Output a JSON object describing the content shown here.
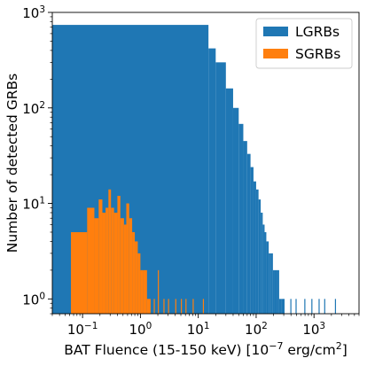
{
  "chart_data": {
    "type": "histogram",
    "title": "",
    "xlabel": {
      "prefix": "BAT Fluence (15-150 keV) [10",
      "prefix_sup": "−7",
      "middle": " erg/cm",
      "middle_sup": "2",
      "suffix": "]"
    },
    "ylabel": "Number of detected GRBs",
    "x_scale": "log",
    "y_scale": "log",
    "xlim": [
      0.03,
      6000
    ],
    "ylim": [
      0.7,
      1000
    ],
    "x_ticks": [
      {
        "value": 0.1,
        "base": "10",
        "exp": "−1"
      },
      {
        "value": 1,
        "base": "10",
        "exp": "0"
      },
      {
        "value": 10,
        "base": "10",
        "exp": "1"
      },
      {
        "value": 100,
        "base": "10",
        "exp": "2"
      },
      {
        "value": 1000,
        "base": "10",
        "exp": "3"
      }
    ],
    "y_ticks": [
      {
        "value": 1,
        "base": "10",
        "exp": "0"
      },
      {
        "value": 10,
        "base": "10",
        "exp": "1"
      },
      {
        "value": 100,
        "base": "10",
        "exp": "2"
      },
      {
        "value": 1000,
        "base": "10",
        "exp": "3"
      }
    ],
    "grid": false,
    "legend_position": "top-right",
    "series": [
      {
        "name": "LGRBs",
        "color": "#1f77b4",
        "bins": [
          [
            0.03,
            15,
            740
          ],
          [
            15,
            20,
            420
          ],
          [
            20,
            30,
            300
          ],
          [
            30,
            40,
            160
          ],
          [
            40,
            50,
            100
          ],
          [
            50,
            60,
            68
          ],
          [
            60,
            70,
            45
          ],
          [
            70,
            80,
            33
          ],
          [
            80,
            90,
            24
          ],
          [
            90,
            100,
            17
          ],
          [
            100,
            110,
            14
          ],
          [
            110,
            120,
            11
          ],
          [
            120,
            130,
            8
          ],
          [
            130,
            140,
            6
          ],
          [
            140,
            150,
            5
          ],
          [
            150,
            165,
            4
          ],
          [
            165,
            180,
            3
          ],
          [
            180,
            195,
            3
          ],
          [
            195,
            210,
            2
          ],
          [
            210,
            230,
            2
          ],
          [
            230,
            250,
            2
          ],
          [
            250,
            270,
            1
          ],
          [
            270,
            310,
            1
          ],
          [
            390,
            400,
            1
          ],
          [
            480,
            490,
            1
          ],
          [
            680,
            700,
            1
          ],
          [
            900,
            920,
            1
          ],
          [
            1200,
            1220,
            1
          ],
          [
            1500,
            1520,
            1
          ],
          [
            2300,
            2330,
            1
          ]
        ]
      },
      {
        "name": "SGRBs",
        "color": "#ff7f0e",
        "bins": [
          [
            0.063,
            0.12,
            5
          ],
          [
            0.12,
            0.16,
            9
          ],
          [
            0.16,
            0.19,
            7
          ],
          [
            0.19,
            0.22,
            11
          ],
          [
            0.22,
            0.25,
            8
          ],
          [
            0.25,
            0.28,
            9
          ],
          [
            0.28,
            0.31,
            14
          ],
          [
            0.31,
            0.35,
            9
          ],
          [
            0.35,
            0.4,
            8
          ],
          [
            0.4,
            0.45,
            12
          ],
          [
            0.45,
            0.52,
            7
          ],
          [
            0.52,
            0.57,
            6
          ],
          [
            0.57,
            0.64,
            10
          ],
          [
            0.64,
            0.72,
            7
          ],
          [
            0.72,
            0.8,
            5
          ],
          [
            0.8,
            0.9,
            4
          ],
          [
            0.9,
            1.0,
            3
          ],
          [
            1.0,
            1.1,
            2
          ],
          [
            1.1,
            1.3,
            2
          ],
          [
            1.3,
            1.5,
            1
          ],
          [
            1.7,
            1.75,
            1
          ],
          [
            2.0,
            2.05,
            2
          ],
          [
            2.5,
            2.55,
            1
          ],
          [
            3.0,
            3.05,
            1
          ],
          [
            4.0,
            4.1,
            1
          ],
          [
            5.0,
            5.1,
            1
          ],
          [
            6.0,
            6.1,
            1
          ],
          [
            8.0,
            8.2,
            1
          ],
          [
            12,
            12.3,
            1
          ]
        ]
      }
    ]
  }
}
